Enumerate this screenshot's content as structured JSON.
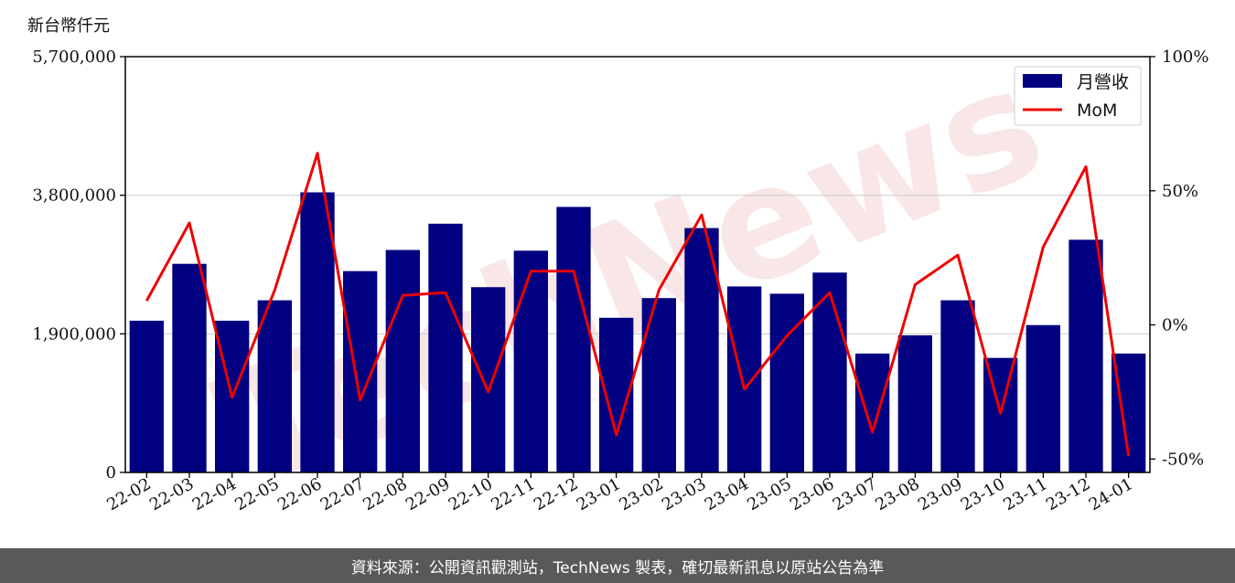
{
  "chart_data": {
    "type": "bar",
    "title": "",
    "ylabel": "新台幣仟元",
    "categories": [
      "22-02",
      "22-03",
      "22-04",
      "22-05",
      "22-06",
      "22-07",
      "22-08",
      "22-09",
      "22-10",
      "22-11",
      "22-12",
      "23-01",
      "23-02",
      "23-03",
      "23-04",
      "23-05",
      "23-06",
      "23-07",
      "23-08",
      "23-09",
      "23-10",
      "23-11",
      "23-12",
      "24-01"
    ],
    "series": [
      {
        "name": "月營收",
        "type": "bar",
        "color": "#000080",
        "values": [
          2080000,
          2860000,
          2080000,
          2360000,
          3840000,
          2760000,
          3050000,
          3410000,
          2540000,
          3040000,
          3640000,
          2120000,
          2390000,
          3350000,
          2550000,
          2450000,
          2740000,
          1630000,
          1880000,
          2360000,
          1570000,
          2020000,
          3190000,
          1630000
        ]
      },
      {
        "name": "MoM",
        "type": "line",
        "color": "#ee0000",
        "axis": "right",
        "values": [
          9,
          38,
          -27,
          13,
          64,
          -28,
          11,
          12,
          -25,
          20,
          20,
          -41,
          13,
          41,
          -24,
          -4,
          12,
          -40,
          15,
          26,
          -33,
          29,
          59,
          -49
        ]
      }
    ],
    "ylim": [
      0,
      5700000
    ],
    "yticks": [
      0,
      1900000,
      3800000,
      5700000
    ],
    "ytick_labels": [
      "0",
      "1,900,000",
      "3,800,000",
      "5,700,000"
    ],
    "y2lim": [
      -55,
      100
    ],
    "y2ticks": [
      -50,
      0,
      50,
      100
    ],
    "y2tick_labels": [
      "-50%",
      "0%",
      "50%",
      "100%"
    ],
    "grid": "horizontal",
    "legend_position": "top-right",
    "watermark": "TechNews"
  },
  "footer_text": "資料來源：公開資訊觀測站，TechNews 製表，確切最新訊息以原站公告為準"
}
